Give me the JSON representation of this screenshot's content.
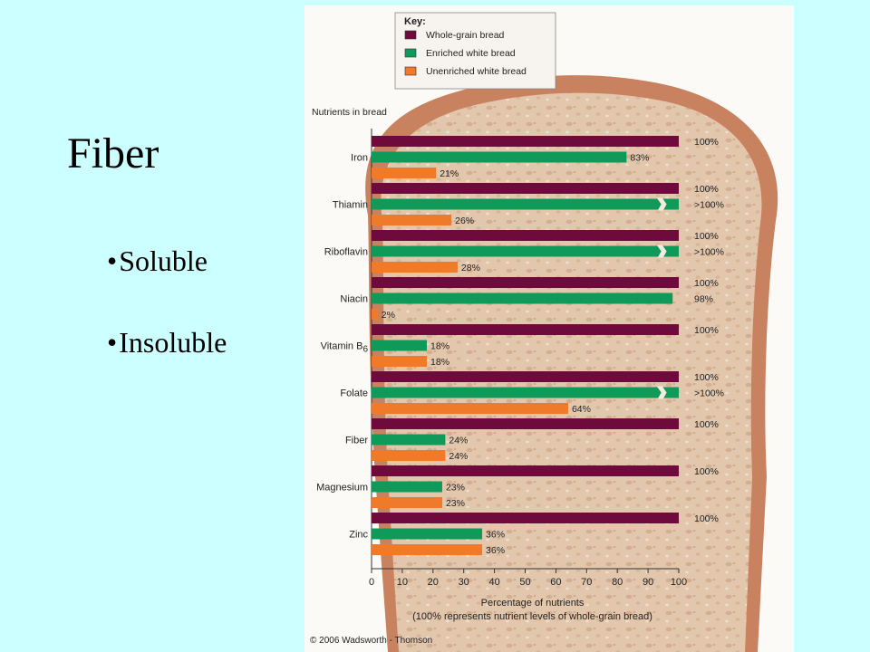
{
  "slide": {
    "title": "Fiber",
    "bullets": [
      "Soluble",
      "Insoluble"
    ],
    "bullet_char": "•"
  },
  "colors": {
    "background": "#ccffff",
    "whole_grain": "#6e0a3c",
    "enriched": "#0f9a5a",
    "unenriched": "#ef7a2a",
    "bread_crust": "#c9825f",
    "bread_crumb": "#e2c7ad"
  },
  "chart_data": {
    "type": "bar",
    "orientation": "horizontal",
    "key_title": "Key:",
    "categories_label": "Nutrients in bread",
    "categories": [
      "Iron",
      "Thiamin",
      "Riboflavin",
      "Niacin",
      "Vitamin B6",
      "Folate",
      "Fiber",
      "Magnesium",
      "Zinc"
    ],
    "series": [
      {
        "name": "Whole-grain bread",
        "color": "#6e0a3c",
        "values": [
          100,
          100,
          100,
          100,
          100,
          100,
          100,
          100,
          100
        ],
        "labels": [
          "100%",
          "100%",
          "100%",
          "100%",
          "100%",
          "100%",
          "100%",
          "100%",
          "100%"
        ]
      },
      {
        "name": "Enriched white bread",
        "color": "#0f9a5a",
        "values": [
          83,
          100,
          100,
          98,
          18,
          100,
          24,
          23,
          36
        ],
        "labels": [
          "83%",
          ">100%",
          ">100%",
          "98%",
          "18%",
          ">100%",
          "24%",
          "23%",
          "36%"
        ],
        "exceeds": [
          false,
          true,
          true,
          false,
          false,
          true,
          false,
          false,
          false
        ]
      },
      {
        "name": "Unenriched white bread",
        "color": "#ef7a2a",
        "values": [
          21,
          26,
          28,
          2,
          18,
          64,
          24,
          23,
          36
        ],
        "labels": [
          "21%",
          "26%",
          "28%",
          "2%",
          "18%",
          "64%",
          "24%",
          "23%",
          "36%"
        ]
      }
    ],
    "xticks": [
      "0",
      "10",
      "20",
      "30",
      "40",
      "50",
      "60",
      "70",
      "80",
      "90",
      "100"
    ],
    "xlim": [
      0,
      100
    ],
    "xlabel": "Percentage of nutrients",
    "xlabel_note": "(100% represents nutrient levels of whole-grain bread)",
    "legend_position": "top-center",
    "grid": false
  },
  "copyright": "© 2006 Wadsworth - Thomson"
}
